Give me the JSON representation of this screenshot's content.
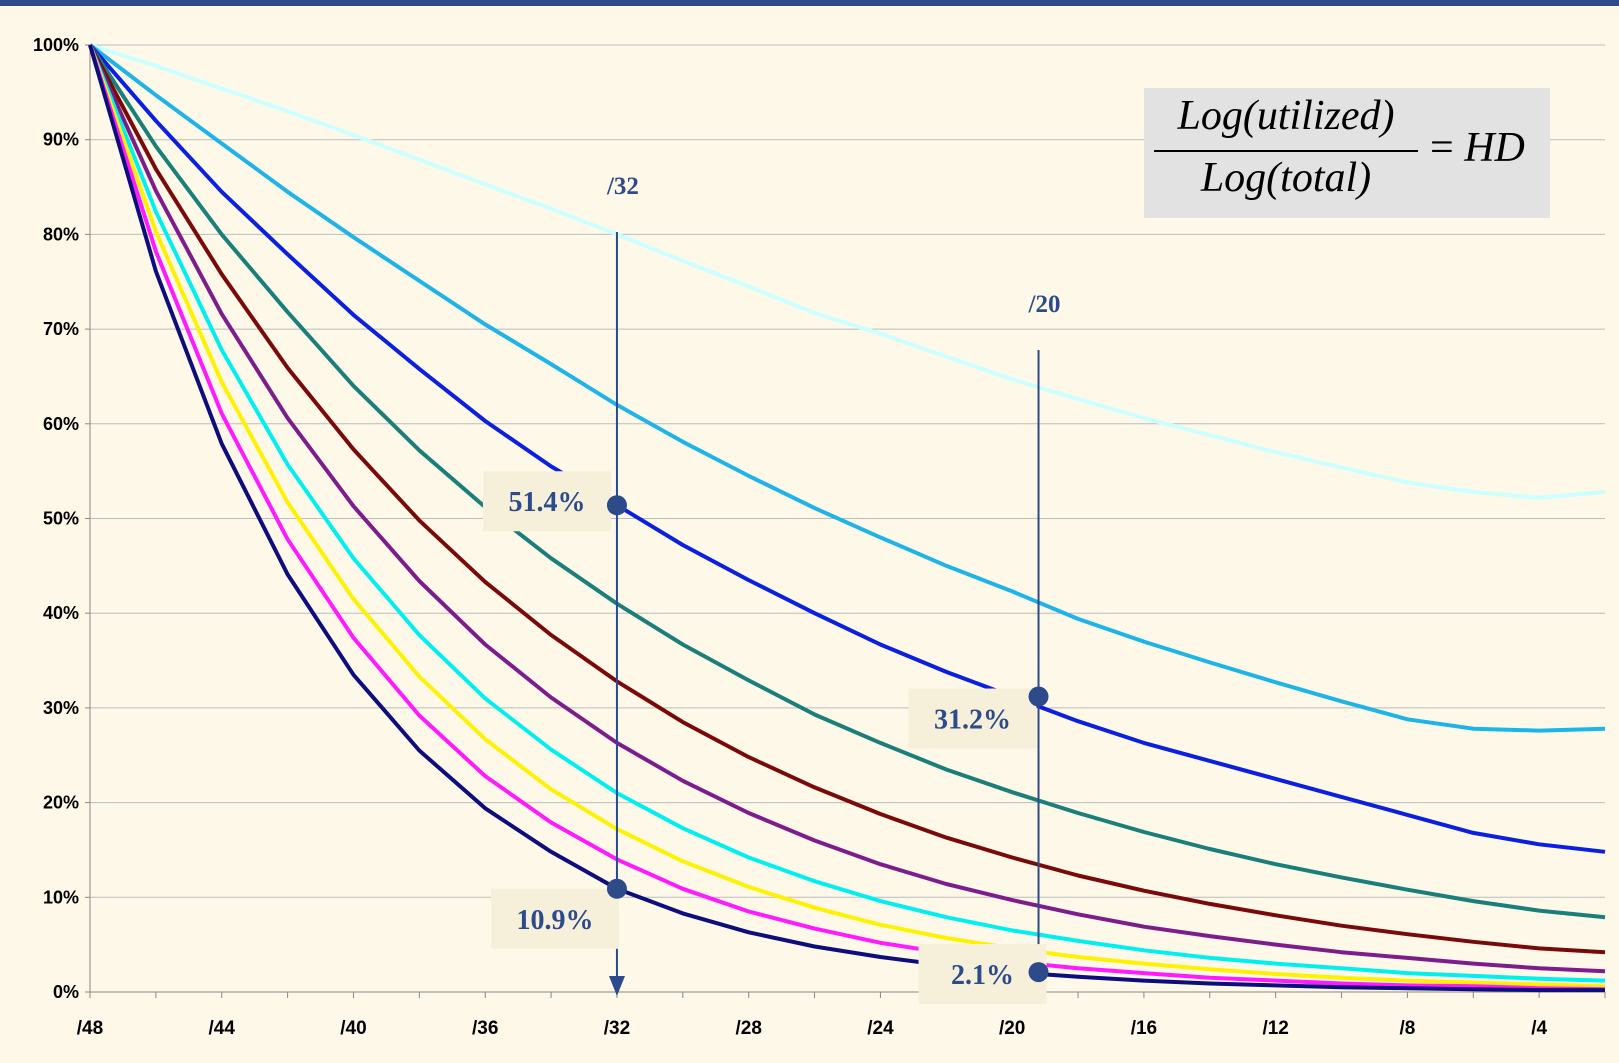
{
  "chart_data": {
    "type": "line",
    "x_ticks": [
      "/48",
      "/44",
      "/40",
      "/36",
      "/32",
      "/28",
      "/24",
      "/20",
      "/16",
      "/12",
      "/8",
      "/4"
    ],
    "y_ticks": [
      "0%",
      "10%",
      "20%",
      "30%",
      "40%",
      "50%",
      "60%",
      "70%",
      "80%",
      "90%",
      "100%"
    ],
    "ylim": [
      0,
      100
    ],
    "xlim": [
      48,
      2
    ],
    "grid": "horizontal",
    "legend": "none",
    "x": [
      48,
      46,
      44,
      42,
      40,
      38,
      36,
      34,
      32,
      30,
      28,
      26,
      24,
      22,
      20,
      18,
      16,
      14,
      12,
      10,
      8,
      6,
      4,
      2
    ],
    "series": [
      {
        "color": "#ccffff",
        "values": [
          100,
          97.8,
          95.4,
          93.0,
          90.5,
          87.9,
          85.3,
          82.7,
          80.0,
          77.2,
          74.5,
          71.7,
          69.5,
          67.1,
          64.7,
          62.6,
          60.6,
          58.8,
          57.0,
          55.4,
          53.8,
          52.8,
          52.2,
          52.8
        ]
      },
      {
        "color": "#1fb4e8",
        "values": [
          100,
          94.7,
          89.6,
          84.5,
          79.7,
          75.1,
          70.5,
          66.3,
          62.0,
          58.1,
          54.5,
          51.1,
          48.0,
          45.0,
          42.3,
          39.4,
          37.0,
          34.8,
          32.7,
          30.7,
          28.8,
          27.8,
          27.6,
          27.8
        ]
      },
      {
        "color": "#0b1fe0",
        "values": [
          100,
          92.0,
          84.5,
          77.9,
          71.5,
          65.8,
          60.3,
          55.5,
          51.4,
          47.2,
          43.5,
          40.0,
          36.7,
          33.8,
          31.2,
          28.6,
          26.3,
          24.4,
          22.5,
          20.6,
          18.7,
          16.8,
          15.6,
          14.8
        ]
      },
      {
        "color": "#1a7f7a",
        "values": [
          100,
          89.3,
          80.0,
          71.8,
          64.0,
          57.2,
          51.2,
          45.8,
          41.0,
          36.7,
          32.9,
          29.3,
          26.3,
          23.5,
          21.1,
          18.9,
          16.9,
          15.1,
          13.5,
          12.1,
          10.8,
          9.6,
          8.6,
          7.9
        ]
      },
      {
        "color": "#7a0a0a",
        "values": [
          100,
          86.9,
          75.8,
          65.9,
          57.3,
          49.8,
          43.3,
          37.7,
          32.8,
          28.5,
          24.8,
          21.6,
          18.8,
          16.3,
          14.2,
          12.3,
          10.7,
          9.3,
          8.1,
          7.0,
          6.1,
          5.3,
          4.6,
          4.2
        ]
      },
      {
        "color": "#7d1d8c",
        "values": [
          100,
          84.6,
          71.6,
          60.6,
          51.3,
          43.4,
          36.7,
          31.1,
          26.3,
          22.3,
          18.9,
          16.0,
          13.5,
          11.4,
          9.7,
          8.2,
          6.9,
          5.9,
          5.0,
          4.2,
          3.6,
          3.0,
          2.5,
          2.2
        ]
      },
      {
        "color": "#00f0f0",
        "values": [
          100,
          82.4,
          67.8,
          55.7,
          45.8,
          37.7,
          31.0,
          25.6,
          21.0,
          17.3,
          14.2,
          11.7,
          9.6,
          7.9,
          6.5,
          5.4,
          4.4,
          3.6,
          3.0,
          2.5,
          2.0,
          1.7,
          1.4,
          1.2
        ]
      },
      {
        "color": "#fff200",
        "values": [
          100,
          80.3,
          64.4,
          51.7,
          41.5,
          33.3,
          26.7,
          21.4,
          17.2,
          13.8,
          11.1,
          8.9,
          7.1,
          5.7,
          4.6,
          3.7,
          3.0,
          2.4,
          1.9,
          1.5,
          1.2,
          1.0,
          0.8,
          0.6
        ]
      },
      {
        "color": "#ff1aff",
        "values": [
          100,
          78.2,
          61.1,
          47.8,
          37.4,
          29.2,
          22.8,
          17.9,
          14.0,
          10.9,
          8.5,
          6.7,
          5.2,
          4.1,
          3.2,
          2.5,
          2.0,
          1.5,
          1.2,
          0.9,
          0.7,
          0.6,
          0.4,
          0.3
        ]
      },
      {
        "color": "#0d0d7d",
        "values": [
          100,
          76.1,
          57.9,
          44.1,
          33.5,
          25.5,
          19.4,
          14.8,
          10.9,
          8.3,
          6.3,
          4.8,
          3.7,
          2.8,
          2.1,
          1.6,
          1.2,
          0.9,
          0.7,
          0.5,
          0.4,
          0.3,
          0.2,
          0.2
        ]
      }
    ],
    "markers": [
      {
        "label": "/32",
        "x": 32
      },
      {
        "label": "/20",
        "x": 19.2
      }
    ],
    "callouts": [
      {
        "text": "51.4%",
        "x": 32,
        "y": 51.4
      },
      {
        "text": "10.9%",
        "x": 32,
        "y": 10.9
      },
      {
        "text": "31.2%",
        "x": 19.2,
        "y": 31.2
      },
      {
        "text": "2.1%",
        "x": 19.2,
        "y": 2.1
      }
    ],
    "marker_color": "#2d4a8a",
    "formula": {
      "numerator": "Log(utilized)",
      "denominator": "Log(total)",
      "equals": "=",
      "result": "HD"
    }
  }
}
